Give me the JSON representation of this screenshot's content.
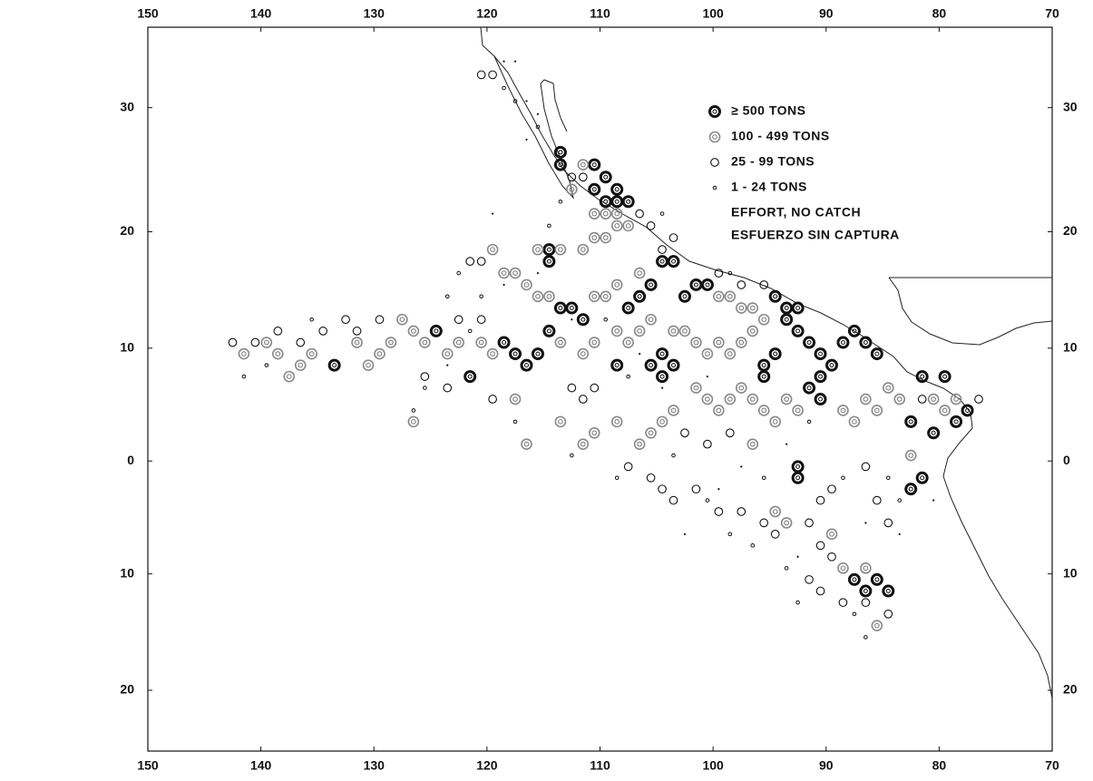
{
  "chart_data": {
    "type": "map",
    "projection": "mercator",
    "xlim": [
      150,
      70
    ],
    "ylim": [
      -25,
      36
    ],
    "xticks": [
      150,
      140,
      130,
      120,
      110,
      100,
      90,
      80,
      70
    ],
    "yticks": [
      {
        "value": -20,
        "label": "20"
      },
      {
        "value": -10,
        "label": "10"
      },
      0,
      10,
      20,
      30
    ],
    "legend_subtitle": "ESFUERZO SIN CAPTURA",
    "series": [
      {
        "name": "≥ 500 TONS",
        "color": "#111111",
        "points": [
          [
            113.5,
            25.5
          ],
          [
            113.5,
            26.5
          ],
          [
            110.5,
            25.5
          ],
          [
            109.5,
            24.5
          ],
          [
            108.5,
            23.5
          ],
          [
            108.5,
            22.5
          ],
          [
            107.5,
            22.5
          ],
          [
            109.5,
            22.5
          ],
          [
            110.5,
            23.5
          ],
          [
            114.5,
            18.5
          ],
          [
            114.5,
            17.5
          ],
          [
            104.5,
            17.5
          ],
          [
            103.5,
            17.5
          ],
          [
            113.5,
            13.5
          ],
          [
            112.5,
            13.5
          ],
          [
            111.5,
            12.5
          ],
          [
            107.5,
            13.5
          ],
          [
            106.5,
            14.5
          ],
          [
            105.5,
            15.5
          ],
          [
            102.5,
            14.5
          ],
          [
            100.5,
            15.5
          ],
          [
            101.5,
            15.5
          ],
          [
            94.5,
            14.5
          ],
          [
            93.5,
            13.5
          ],
          [
            92.5,
            13.5
          ],
          [
            93.5,
            12.5
          ],
          [
            92.5,
            11.5
          ],
          [
            91.5,
            10.5
          ],
          [
            90.5,
            9.5
          ],
          [
            89.5,
            8.5
          ],
          [
            88.5,
            10.5
          ],
          [
            87.5,
            11.5
          ],
          [
            86.5,
            10.5
          ],
          [
            85.5,
            9.5
          ],
          [
            90.5,
            7.5
          ],
          [
            91.5,
            6.5
          ],
          [
            90.5,
            5.5
          ],
          [
            94.5,
            9.5
          ],
          [
            95.5,
            8.5
          ],
          [
            95.5,
            7.5
          ],
          [
            104.5,
            7.5
          ],
          [
            103.5,
            8.5
          ],
          [
            104.5,
            9.5
          ],
          [
            105.5,
            8.5
          ],
          [
            108.5,
            8.5
          ],
          [
            117.5,
            9.5
          ],
          [
            116.5,
            8.5
          ],
          [
            115.5,
            9.5
          ],
          [
            118.5,
            10.5
          ],
          [
            114.5,
            11.5
          ],
          [
            121.5,
            7.5
          ],
          [
            124.5,
            11.5
          ],
          [
            133.5,
            8.5
          ],
          [
            81.5,
            7.5
          ],
          [
            79.5,
            7.5
          ],
          [
            78.5,
            3.5
          ],
          [
            77.5,
            4.5
          ],
          [
            80.5,
            2.5
          ],
          [
            82.5,
            3.5
          ],
          [
            92.5,
            -0.5
          ],
          [
            92.5,
            -1.5
          ],
          [
            81.5,
            -1.5
          ],
          [
            82.5,
            -2.5
          ],
          [
            87.5,
            -10.5
          ],
          [
            86.5,
            -11.5
          ],
          [
            85.5,
            -10.5
          ],
          [
            84.5,
            -11.5
          ]
        ]
      },
      {
        "name": "100 - 499 TONS",
        "color": "#888888",
        "points": [
          [
            111.5,
            25.5
          ],
          [
            112.5,
            23.5
          ],
          [
            110.5,
            21.5
          ],
          [
            109.5,
            21.5
          ],
          [
            108.5,
            21.5
          ],
          [
            108.5,
            20.5
          ],
          [
            107.5,
            20.5
          ],
          [
            109.5,
            19.5
          ],
          [
            110.5,
            19.5
          ],
          [
            111.5,
            18.5
          ],
          [
            113.5,
            18.5
          ],
          [
            115.5,
            18.5
          ],
          [
            119.5,
            18.5
          ],
          [
            118.5,
            16.5
          ],
          [
            117.5,
            16.5
          ],
          [
            116.5,
            15.5
          ],
          [
            115.5,
            14.5
          ],
          [
            114.5,
            14.5
          ],
          [
            110.5,
            14.5
          ],
          [
            109.5,
            14.5
          ],
          [
            108.5,
            15.5
          ],
          [
            106.5,
            16.5
          ],
          [
            99.5,
            14.5
          ],
          [
            98.5,
            14.5
          ],
          [
            97.5,
            13.5
          ],
          [
            96.5,
            13.5
          ],
          [
            95.5,
            12.5
          ],
          [
            96.5,
            11.5
          ],
          [
            97.5,
            10.5
          ],
          [
            98.5,
            9.5
          ],
          [
            99.5,
            10.5
          ],
          [
            100.5,
            9.5
          ],
          [
            101.5,
            10.5
          ],
          [
            102.5,
            11.5
          ],
          [
            103.5,
            11.5
          ],
          [
            105.5,
            12.5
          ],
          [
            106.5,
            11.5
          ],
          [
            107.5,
            10.5
          ],
          [
            108.5,
            11.5
          ],
          [
            110.5,
            10.5
          ],
          [
            111.5,
            9.5
          ],
          [
            113.5,
            10.5
          ],
          [
            119.5,
            9.5
          ],
          [
            120.5,
            10.5
          ],
          [
            122.5,
            10.5
          ],
          [
            123.5,
            9.5
          ],
          [
            125.5,
            10.5
          ],
          [
            126.5,
            11.5
          ],
          [
            127.5,
            12.5
          ],
          [
            128.5,
            10.5
          ],
          [
            129.5,
            9.5
          ],
          [
            130.5,
            8.5
          ],
          [
            131.5,
            10.5
          ],
          [
            135.5,
            9.5
          ],
          [
            136.5,
            8.5
          ],
          [
            137.5,
            7.5
          ],
          [
            138.5,
            9.5
          ],
          [
            139.5,
            10.5
          ],
          [
            141.5,
            9.5
          ],
          [
            101.5,
            6.5
          ],
          [
            100.5,
            5.5
          ],
          [
            99.5,
            4.5
          ],
          [
            98.5,
            5.5
          ],
          [
            97.5,
            6.5
          ],
          [
            96.5,
            5.5
          ],
          [
            95.5,
            4.5
          ],
          [
            94.5,
            3.5
          ],
          [
            93.5,
            5.5
          ],
          [
            92.5,
            4.5
          ],
          [
            88.5,
            4.5
          ],
          [
            87.5,
            3.5
          ],
          [
            86.5,
            5.5
          ],
          [
            85.5,
            4.5
          ],
          [
            84.5,
            6.5
          ],
          [
            83.5,
            5.5
          ],
          [
            79.5,
            4.5
          ],
          [
            80.5,
            5.5
          ],
          [
            103.5,
            4.5
          ],
          [
            104.5,
            3.5
          ],
          [
            105.5,
            2.5
          ],
          [
            106.5,
            1.5
          ],
          [
            108.5,
            3.5
          ],
          [
            110.5,
            2.5
          ],
          [
            113.5,
            3.5
          ],
          [
            116.5,
            1.5
          ],
          [
            111.5,
            1.5
          ],
          [
            96.5,
            1.5
          ],
          [
            94.5,
            -4.5
          ],
          [
            93.5,
            -5.5
          ],
          [
            89.5,
            -6.5
          ],
          [
            88.5,
            -9.5
          ],
          [
            86.5,
            -9.5
          ],
          [
            85.5,
            -14.5
          ],
          [
            117.5,
            5.5
          ],
          [
            126.5,
            3.5
          ],
          [
            82.5,
            0.5
          ],
          [
            78.5,
            5.5
          ]
        ]
      },
      {
        "name": "25 - 99 TONS",
        "color": "#111111",
        "points": [
          [
            120.5,
            32.5
          ],
          [
            119.5,
            32.5
          ],
          [
            112.5,
            24.5
          ],
          [
            111.5,
            24.5
          ],
          [
            106.5,
            21.5
          ],
          [
            105.5,
            20.5
          ],
          [
            121.5,
            17.5
          ],
          [
            120.5,
            17.5
          ],
          [
            104.5,
            18.5
          ],
          [
            103.5,
            19.5
          ],
          [
            99.5,
            16.5
          ],
          [
            120.5,
            12.5
          ],
          [
            129.5,
            12.5
          ],
          [
            132.5,
            12.5
          ],
          [
            131.5,
            11.5
          ],
          [
            134.5,
            11.5
          ],
          [
            138.5,
            11.5
          ],
          [
            140.5,
            10.5
          ],
          [
            142.5,
            10.5
          ],
          [
            125.5,
            7.5
          ],
          [
            123.5,
            6.5
          ],
          [
            119.5,
            5.5
          ],
          [
            110.5,
            6.5
          ],
          [
            112.5,
            6.5
          ],
          [
            111.5,
            5.5
          ],
          [
            102.5,
            2.5
          ],
          [
            100.5,
            1.5
          ],
          [
            98.5,
            2.5
          ],
          [
            107.5,
            -0.5
          ],
          [
            105.5,
            -1.5
          ],
          [
            104.5,
            -2.5
          ],
          [
            103.5,
            -3.5
          ],
          [
            101.5,
            -2.5
          ],
          [
            99.5,
            -4.5
          ],
          [
            97.5,
            -4.5
          ],
          [
            95.5,
            -5.5
          ],
          [
            94.5,
            -6.5
          ],
          [
            91.5,
            -5.5
          ],
          [
            90.5,
            -7.5
          ],
          [
            89.5,
            -8.5
          ],
          [
            91.5,
            -10.5
          ],
          [
            90.5,
            -11.5
          ],
          [
            88.5,
            -12.5
          ],
          [
            86.5,
            -12.5
          ],
          [
            84.5,
            -13.5
          ],
          [
            90.5,
            -3.5
          ],
          [
            89.5,
            -2.5
          ],
          [
            85.5,
            -3.5
          ],
          [
            84.5,
            -5.5
          ],
          [
            86.5,
            -0.5
          ],
          [
            76.5,
            5.5
          ],
          [
            81.5,
            5.5
          ],
          [
            95.5,
            15.5
          ],
          [
            97.5,
            15.5
          ],
          [
            122.5,
            12.5
          ],
          [
            136.5,
            10.5
          ]
        ]
      },
      {
        "name": "1 - 24 TONS",
        "color": "#111111",
        "points": [
          [
            118.5,
            31.5
          ],
          [
            117.5,
            30.5
          ],
          [
            115.5,
            28.5
          ],
          [
            113.5,
            22.5
          ],
          [
            104.5,
            21.5
          ],
          [
            122.5,
            16.5
          ],
          [
            123.5,
            14.5
          ],
          [
            121.5,
            11.5
          ],
          [
            120.5,
            14.5
          ],
          [
            135.5,
            12.5
          ],
          [
            139.5,
            8.5
          ],
          [
            141.5,
            7.5
          ],
          [
            126.5,
            4.5
          ],
          [
            125.5,
            6.5
          ],
          [
            117.5,
            3.5
          ],
          [
            112.5,
            0.5
          ],
          [
            108.5,
            -1.5
          ],
          [
            100.5,
            -3.5
          ],
          [
            98.5,
            -6.5
          ],
          [
            96.5,
            -7.5
          ],
          [
            93.5,
            -9.5
          ],
          [
            92.5,
            -12.5
          ],
          [
            86.5,
            -15.5
          ],
          [
            87.5,
            -13.5
          ],
          [
            95.5,
            -1.5
          ],
          [
            88.5,
            -1.5
          ],
          [
            84.5,
            -1.5
          ],
          [
            83.5,
            -3.5
          ],
          [
            91.5,
            3.5
          ],
          [
            103.5,
            0.5
          ],
          [
            107.5,
            7.5
          ],
          [
            109.5,
            12.5
          ],
          [
            114.5,
            20.5
          ],
          [
            98.5,
            16.5
          ]
        ]
      },
      {
        "name": "EFFORT, NO CATCH",
        "color": "#111111",
        "points": [
          [
            118.5,
            33.5
          ],
          [
            117.5,
            33.5
          ],
          [
            116.5,
            30.5
          ],
          [
            115.5,
            29.5
          ],
          [
            116.5,
            27.5
          ],
          [
            119.5,
            21.5
          ],
          [
            118.5,
            15.5
          ],
          [
            115.5,
            16.5
          ],
          [
            104.5,
            6.5
          ],
          [
            102.5,
            -6.5
          ],
          [
            99.5,
            -2.5
          ],
          [
            97.5,
            -0.5
          ],
          [
            93.5,
            1.5
          ],
          [
            86.5,
            -5.5
          ],
          [
            83.5,
            -6.5
          ],
          [
            80.5,
            -3.5
          ],
          [
            92.5,
            -8.5
          ],
          [
            100.5,
            7.5
          ],
          [
            106.5,
            9.5
          ],
          [
            112.5,
            12.5
          ],
          [
            123.5,
            8.5
          ]
        ]
      }
    ]
  }
}
